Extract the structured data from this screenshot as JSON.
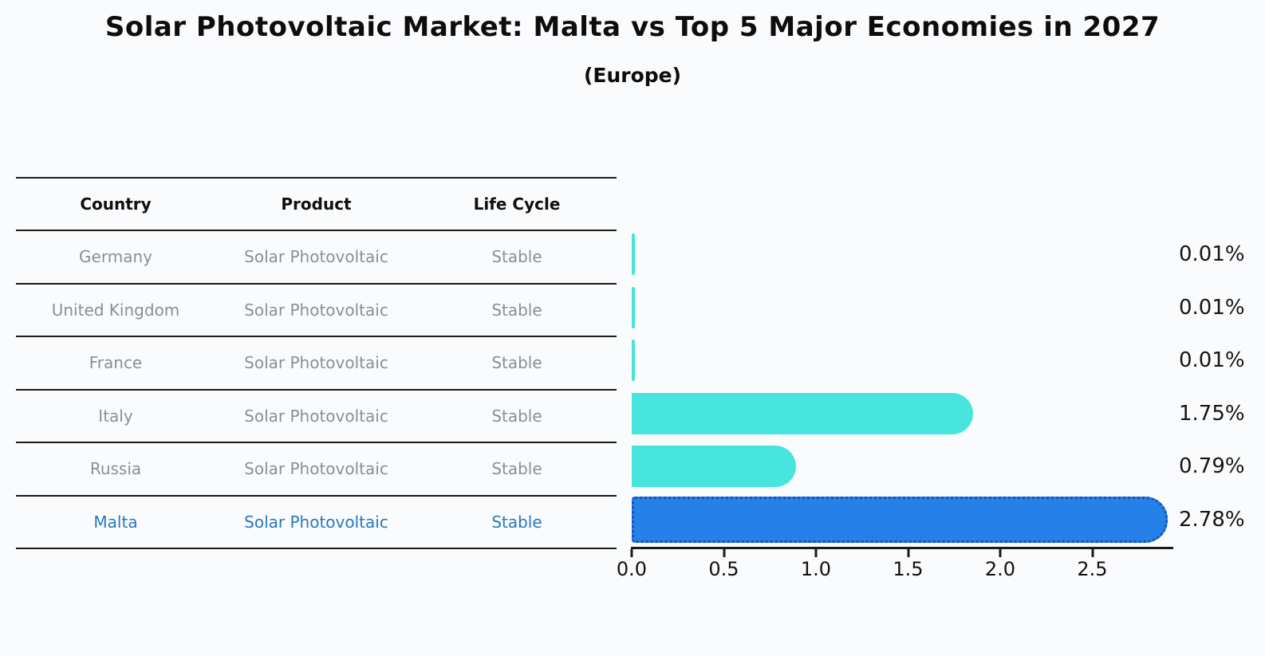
{
  "title": "Solar Photovoltaic Market: Malta vs Top 5 Major Economies in 2027",
  "subtitle": "(Europe)",
  "table": {
    "headers": [
      "Country",
      "Product",
      "Life Cycle"
    ],
    "rows": [
      {
        "country": "Germany",
        "product": "Solar Photovoltaic",
        "life_cycle": "Stable",
        "highlight": false
      },
      {
        "country": "United Kingdom",
        "product": "Solar Photovoltaic",
        "life_cycle": "Stable",
        "highlight": false
      },
      {
        "country": "France",
        "product": "Solar Photovoltaic",
        "life_cycle": "Stable",
        "highlight": false
      },
      {
        "country": "Italy",
        "product": "Solar Photovoltaic",
        "life_cycle": "Stable",
        "highlight": false
      },
      {
        "country": "Russia",
        "product": "Solar Photovoltaic",
        "life_cycle": "Stable",
        "highlight": false
      },
      {
        "country": "Malta",
        "product": "Solar Photovoltaic",
        "life_cycle": "Stable",
        "highlight": true
      }
    ]
  },
  "chart_data": {
    "type": "bar",
    "orientation": "horizontal",
    "title": "Solar Photovoltaic Market: Malta vs Top 5 Major Economies in 2027",
    "subtitle": "(Europe)",
    "categories": [
      "Germany",
      "United Kingdom",
      "France",
      "Italy",
      "Russia",
      "Malta"
    ],
    "values": [
      0.01,
      0.01,
      0.01,
      1.75,
      0.79,
      2.78
    ],
    "labels": [
      "0.01%",
      "0.01%",
      "0.01%",
      "1.75%",
      "0.79%",
      "2.78%"
    ],
    "highlight_category": "Malta",
    "xlim": [
      0,
      2.9
    ],
    "xticks": [
      "0.0",
      "0.5",
      "1.0",
      "1.5",
      "2.0",
      "2.5"
    ],
    "grid": false,
    "legend": null,
    "colors": {
      "bar_default": "#48e5de",
      "bar_highlight": "#2580e8",
      "bar_highlight_border": "#1450b8",
      "highlight_text": "#2878be",
      "axis": "#1a1a1a",
      "table_text": "#8a8f94"
    }
  }
}
